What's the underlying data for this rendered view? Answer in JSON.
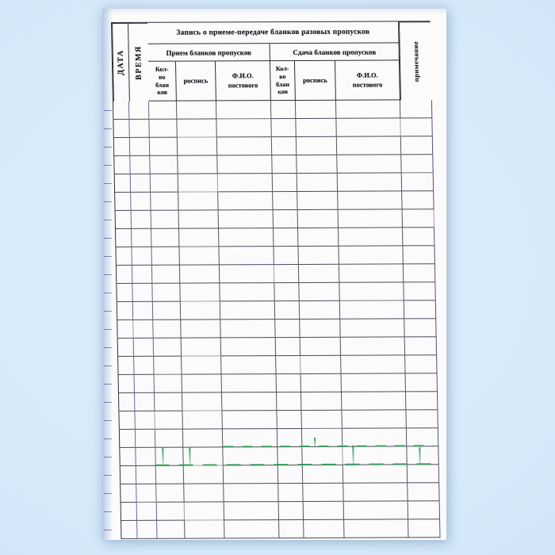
{
  "document": {
    "form": {
      "title": "Запись о приеме-передаче бланков разовых пропусков",
      "col_date": "ДАТА",
      "col_time": "ВРЕМЯ",
      "col_note": "примечание",
      "section_receive": "Прием бланков пропусков",
      "section_handover": "Сдача бланков пропусков",
      "col_qty": "Кол-\nво\nблан\nков",
      "col_signature": "роспись",
      "col_fio": "Ф.И.О.\nпостового",
      "body_rows": 24,
      "body_columns": 9
    },
    "appearance": {
      "background_color": "#d6eafa",
      "paper_color": "#fbfbfc",
      "grid_line_color": "#3c3c4a",
      "artifact_green": "#2f9e58"
    }
  }
}
